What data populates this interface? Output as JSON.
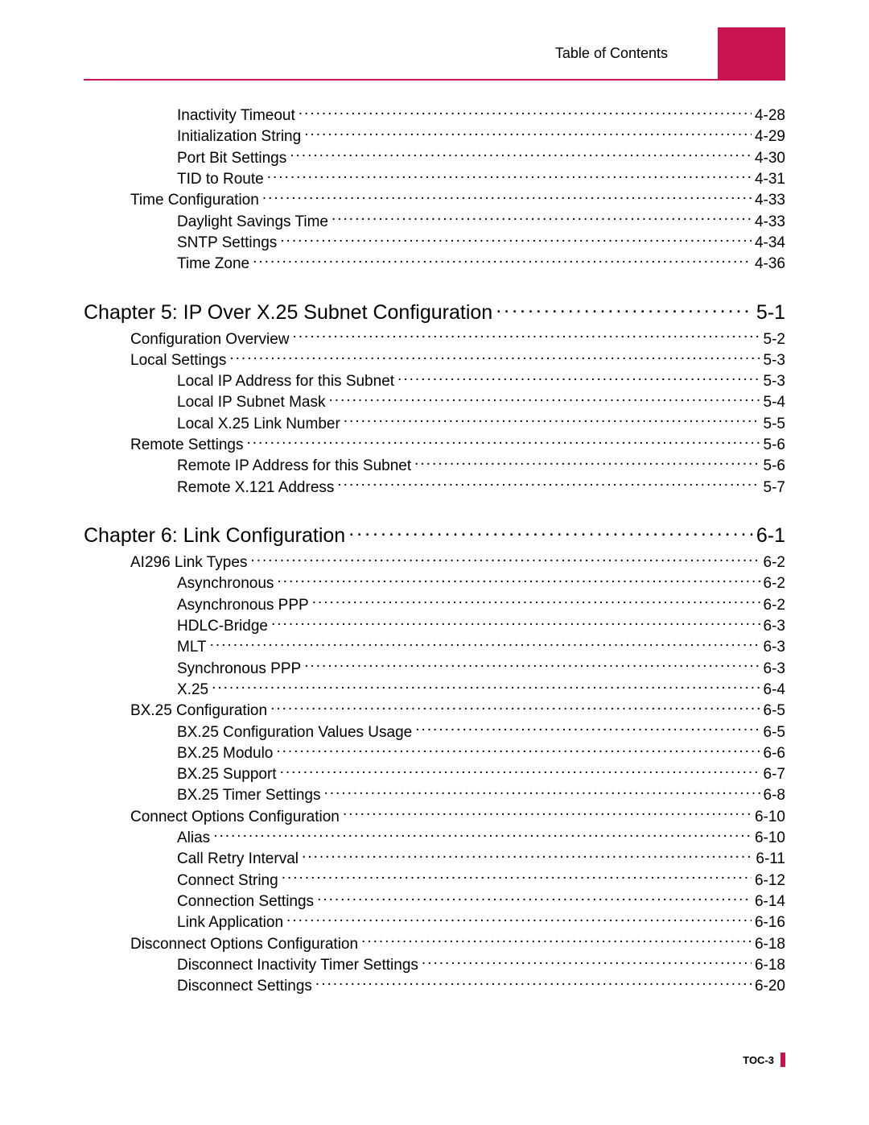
{
  "colors": {
    "accent": "#c8134e",
    "text": "#000000",
    "background": "#ffffff"
  },
  "typography": {
    "body_fontsize_pt": 14,
    "chapter_fontsize_pt": 19,
    "footer_fontsize_pt": 10,
    "font_family": "Arial"
  },
  "header": {
    "title": "Table of Contents"
  },
  "footer": {
    "page_label": "TOC-3"
  },
  "toc": {
    "entries": [
      {
        "level": 2,
        "title": "Inactivity Timeout",
        "page": "4-28"
      },
      {
        "level": 2,
        "title": "Initialization String",
        "page": "4-29"
      },
      {
        "level": 2,
        "title": "Port Bit Settings",
        "page": "4-30"
      },
      {
        "level": 2,
        "title": "TID to Route",
        "page": "4-31"
      },
      {
        "level": 1,
        "title": "Time Configuration",
        "page": "4-33"
      },
      {
        "level": 2,
        "title": "Daylight Savings Time",
        "page": "4-33"
      },
      {
        "level": 2,
        "title": "SNTP Settings",
        "page": "4-34"
      },
      {
        "level": 2,
        "title": "Time Zone",
        "page": "4-36"
      },
      {
        "level": 0,
        "title": "Chapter 5:   IP Over X.25 Subnet Configuration",
        "page": "5-1"
      },
      {
        "level": 1,
        "title": "Configuration Overview",
        "page": "5-2"
      },
      {
        "level": 1,
        "title": "Local Settings",
        "page": "5-3"
      },
      {
        "level": 2,
        "title": "Local IP Address for this Subnet",
        "page": "5-3"
      },
      {
        "level": 2,
        "title": "Local IP Subnet Mask",
        "page": "5-4"
      },
      {
        "level": 2,
        "title": "Local X.25 Link Number",
        "page": "5-5"
      },
      {
        "level": 1,
        "title": "Remote Settings",
        "page": "5-6"
      },
      {
        "level": 2,
        "title": "Remote IP Address for this Subnet",
        "page": "5-6"
      },
      {
        "level": 2,
        "title": "Remote X.121 Address",
        "page": "5-7"
      },
      {
        "level": 0,
        "title": "Chapter 6:   Link Configuration",
        "page": "6-1"
      },
      {
        "level": 1,
        "title": "AI296 Link Types",
        "page": "6-2"
      },
      {
        "level": 2,
        "title": "Asynchronous",
        "page": "6-2"
      },
      {
        "level": 2,
        "title": "Asynchronous PPP",
        "page": "6-2"
      },
      {
        "level": 2,
        "title": "HDLC-Bridge",
        "page": "6-3"
      },
      {
        "level": 2,
        "title": "MLT",
        "page": "6-3"
      },
      {
        "level": 2,
        "title": "Synchronous PPP",
        "page": "6-3"
      },
      {
        "level": 2,
        "title": "X.25",
        "page": "6-4"
      },
      {
        "level": 1,
        "title": "BX.25 Configuration",
        "page": "6-5"
      },
      {
        "level": 2,
        "title": "BX.25 Configuration Values Usage",
        "page": "6-5"
      },
      {
        "level": 2,
        "title": "BX.25 Modulo",
        "page": "6-6"
      },
      {
        "level": 2,
        "title": "BX.25 Support",
        "page": "6-7"
      },
      {
        "level": 2,
        "title": "BX.25 Timer Settings",
        "page": "6-8"
      },
      {
        "level": 1,
        "title": "Connect Options Configuration",
        "page": "6-10"
      },
      {
        "level": 2,
        "title": "Alias",
        "page": "6-10"
      },
      {
        "level": 2,
        "title": "Call Retry Interval",
        "page": "6-11"
      },
      {
        "level": 2,
        "title": "Connect String",
        "page": "6-12"
      },
      {
        "level": 2,
        "title": "Connection Settings",
        "page": "6-14"
      },
      {
        "level": 2,
        "title": "Link Application",
        "page": "6-16"
      },
      {
        "level": 1,
        "title": "Disconnect Options Configuration",
        "page": "6-18"
      },
      {
        "level": 2,
        "title": "Disconnect Inactivity Timer Settings",
        "page": "6-18"
      },
      {
        "level": 2,
        "title": "Disconnect Settings",
        "page": "6-20"
      }
    ]
  }
}
